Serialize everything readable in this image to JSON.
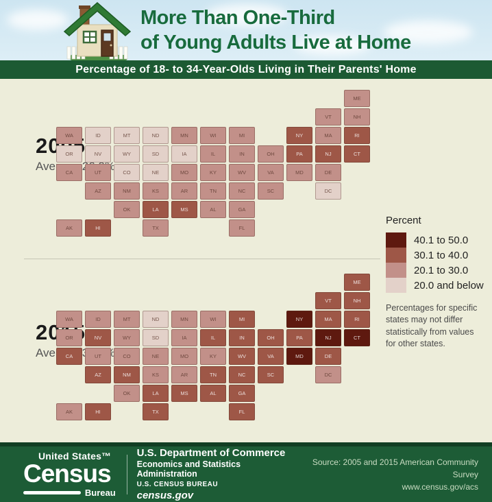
{
  "header": {
    "title_line1": "More Than One-Third",
    "title_line2": "of Young Adults Live at Home",
    "banner": "Percentage of 18- to 34-Year-Olds Living in Their Parents' Home"
  },
  "maps": {
    "m2005": {
      "year": "2005",
      "average_label": "Average 26.0%"
    },
    "m2015": {
      "year": "2015",
      "average_label": "Average 34.1%"
    }
  },
  "legend": {
    "title": "Percent",
    "items": [
      {
        "label": "40.1 to 50.0",
        "color": "#5e190f"
      },
      {
        "label": "30.1 to 40.0",
        "color": "#9e5747"
      },
      {
        "label": "20.1 to 30.0",
        "color": "#c29089"
      },
      {
        "label": "20.0 and below",
        "color": "#e3d1c9"
      }
    ],
    "note": "Percentages for specific states may not differ statistically from values for other states."
  },
  "footer": {
    "logo_top": "United States™",
    "logo_main": "Census",
    "logo_sub": "Bureau",
    "dept": "U.S. Department of Commerce",
    "admin": "Economics and Statistics Administration",
    "bureau": "U.S. CENSUS BUREAU",
    "site": "census.gov",
    "source_line1": "Source: 2005 and 2015 American Community Survey",
    "source_line2": "www.census.gov/acs"
  },
  "chart_data": {
    "type": "heatmap",
    "subtype": "us_state_choropleth_pair",
    "title": "Percentage of 18- to 34-Year-Olds Living in Their Parents' Home",
    "bins": [
      "40.1 to 50.0",
      "30.1 to 40.0",
      "20.1 to 30.0",
      "20.0 and below"
    ],
    "bin_colors": [
      "#5e190f",
      "#9e5747",
      "#c29089",
      "#e3d1c9"
    ],
    "maps": [
      {
        "year": "2005",
        "average_pct": 26.0
      },
      {
        "year": "2015",
        "average_pct": 34.1
      }
    ],
    "bin_scale_note": "bin values: 1 = 20.0 and below, 2 = 20.1 to 30.0, 3 = 30.1 to 40.0, 4 = 40.1 to 50.0",
    "states": [
      {
        "abbr": "ME",
        "bin_2005": 2,
        "bin_2015": 3,
        "col": 10,
        "row": 0
      },
      {
        "abbr": "VT",
        "bin_2005": 2,
        "bin_2015": 3,
        "col": 9,
        "row": 1
      },
      {
        "abbr": "NH",
        "bin_2005": 2,
        "bin_2015": 3,
        "col": 10,
        "row": 1
      },
      {
        "abbr": "WA",
        "bin_2005": 2,
        "bin_2015": 2,
        "col": 0,
        "row": 2
      },
      {
        "abbr": "ID",
        "bin_2005": 1,
        "bin_2015": 2,
        "col": 1,
        "row": 2
      },
      {
        "abbr": "MT",
        "bin_2005": 1,
        "bin_2015": 2,
        "col": 2,
        "row": 2
      },
      {
        "abbr": "ND",
        "bin_2005": 1,
        "bin_2015": 1,
        "col": 3,
        "row": 2
      },
      {
        "abbr": "MN",
        "bin_2005": 2,
        "bin_2015": 2,
        "col": 4,
        "row": 2
      },
      {
        "abbr": "WI",
        "bin_2005": 2,
        "bin_2015": 2,
        "col": 5,
        "row": 2
      },
      {
        "abbr": "MI",
        "bin_2005": 2,
        "bin_2015": 3,
        "col": 6,
        "row": 2
      },
      {
        "abbr": "NY",
        "bin_2005": 3,
        "bin_2015": 4,
        "col": 8,
        "row": 2
      },
      {
        "abbr": "MA",
        "bin_2005": 2,
        "bin_2015": 3,
        "col": 9,
        "row": 2
      },
      {
        "abbr": "RI",
        "bin_2005": 3,
        "bin_2015": 3,
        "col": 10,
        "row": 2
      },
      {
        "abbr": "OR",
        "bin_2005": 1,
        "bin_2015": 2,
        "col": 0,
        "row": 3
      },
      {
        "abbr": "NV",
        "bin_2005": 1,
        "bin_2015": 3,
        "col": 1,
        "row": 3
      },
      {
        "abbr": "WY",
        "bin_2005": 1,
        "bin_2015": 2,
        "col": 2,
        "row": 3
      },
      {
        "abbr": "SD",
        "bin_2005": 1,
        "bin_2015": 1,
        "col": 3,
        "row": 3
      },
      {
        "abbr": "IA",
        "bin_2005": 1,
        "bin_2015": 2,
        "col": 4,
        "row": 3
      },
      {
        "abbr": "IL",
        "bin_2005": 2,
        "bin_2015": 3,
        "col": 5,
        "row": 3
      },
      {
        "abbr": "IN",
        "bin_2005": 2,
        "bin_2015": 3,
        "col": 6,
        "row": 3
      },
      {
        "abbr": "OH",
        "bin_2005": 2,
        "bin_2015": 3,
        "col": 7,
        "row": 3
      },
      {
        "abbr": "PA",
        "bin_2005": 3,
        "bin_2015": 3,
        "col": 8,
        "row": 3
      },
      {
        "abbr": "NJ",
        "bin_2005": 3,
        "bin_2015": 4,
        "col": 9,
        "row": 3
      },
      {
        "abbr": "CT",
        "bin_2005": 3,
        "bin_2015": 4,
        "col": 10,
        "row": 3
      },
      {
        "abbr": "CA",
        "bin_2005": 2,
        "bin_2015": 3,
        "col": 0,
        "row": 4
      },
      {
        "abbr": "UT",
        "bin_2005": 2,
        "bin_2015": 2,
        "col": 1,
        "row": 4
      },
      {
        "abbr": "CO",
        "bin_2005": 1,
        "bin_2015": 2,
        "col": 2,
        "row": 4
      },
      {
        "abbr": "NE",
        "bin_2005": 1,
        "bin_2015": 2,
        "col": 3,
        "row": 4
      },
      {
        "abbr": "MO",
        "bin_2005": 2,
        "bin_2015": 2,
        "col": 4,
        "row": 4
      },
      {
        "abbr": "KY",
        "bin_2005": 2,
        "bin_2015": 2,
        "col": 5,
        "row": 4
      },
      {
        "abbr": "WV",
        "bin_2005": 2,
        "bin_2015": 3,
        "col": 6,
        "row": 4
      },
      {
        "abbr": "VA",
        "bin_2005": 2,
        "bin_2015": 3,
        "col": 7,
        "row": 4
      },
      {
        "abbr": "MD",
        "bin_2005": 2,
        "bin_2015": 4,
        "col": 8,
        "row": 4
      },
      {
        "abbr": "DE",
        "bin_2005": 2,
        "bin_2015": 3,
        "col": 9,
        "row": 4
      },
      {
        "abbr": "AZ",
        "bin_2005": 2,
        "bin_2015": 3,
        "col": 1,
        "row": 5
      },
      {
        "abbr": "NM",
        "bin_2005": 2,
        "bin_2015": 3,
        "col": 2,
        "row": 5
      },
      {
        "abbr": "KS",
        "bin_2005": 2,
        "bin_2015": 2,
        "col": 3,
        "row": 5
      },
      {
        "abbr": "AR",
        "bin_2005": 2,
        "bin_2015": 2,
        "col": 4,
        "row": 5
      },
      {
        "abbr": "TN",
        "bin_2005": 2,
        "bin_2015": 3,
        "col": 5,
        "row": 5
      },
      {
        "abbr": "NC",
        "bin_2005": 2,
        "bin_2015": 3,
        "col": 6,
        "row": 5
      },
      {
        "abbr": "SC",
        "bin_2005": 2,
        "bin_2015": 3,
        "col": 7,
        "row": 5
      },
      {
        "abbr": "DC",
        "bin_2005": 1,
        "bin_2015": 2,
        "col": 9,
        "row": 5
      },
      {
        "abbr": "OK",
        "bin_2005": 2,
        "bin_2015": 2,
        "col": 2,
        "row": 6
      },
      {
        "abbr": "LA",
        "bin_2005": 3,
        "bin_2015": 3,
        "col": 3,
        "row": 6
      },
      {
        "abbr": "MS",
        "bin_2005": 3,
        "bin_2015": 3,
        "col": 4,
        "row": 6
      },
      {
        "abbr": "AL",
        "bin_2005": 2,
        "bin_2015": 3,
        "col": 5,
        "row": 6
      },
      {
        "abbr": "GA",
        "bin_2005": 2,
        "bin_2015": 3,
        "col": 6,
        "row": 6
      },
      {
        "abbr": "AK",
        "bin_2005": 2,
        "bin_2015": 2,
        "col": 0,
        "row": 7
      },
      {
        "abbr": "HI",
        "bin_2005": 3,
        "bin_2015": 3,
        "col": 1,
        "row": 7
      },
      {
        "abbr": "TX",
        "bin_2005": 2,
        "bin_2015": 3,
        "col": 3,
        "row": 7
      },
      {
        "abbr": "FL",
        "bin_2005": 2,
        "bin_2015": 3,
        "col": 6,
        "row": 7
      }
    ]
  }
}
